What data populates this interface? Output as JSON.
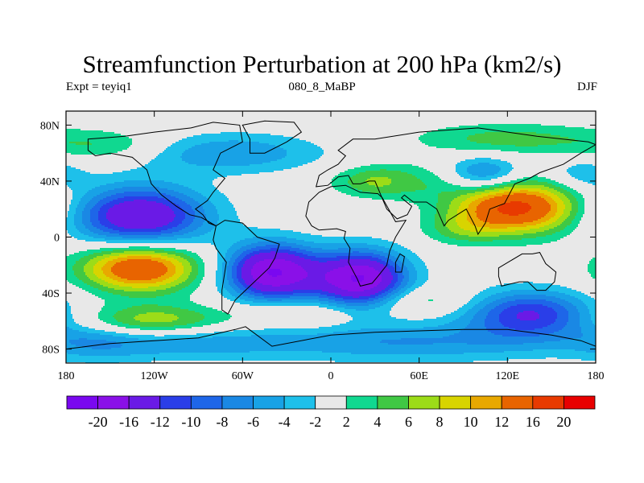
{
  "chart_data": {
    "type": "heatmap",
    "title": "Streamfunction Perturbation at 200 hPa (km2/s)",
    "left_string": "Expt = teyiq1",
    "center_string": "080_8_MaBP",
    "right_string": "DJF",
    "xlim": [
      -180,
      180
    ],
    "ylim": [
      -90,
      90
    ],
    "x_ticks": [
      {
        "value": -180,
        "label": "180"
      },
      {
        "value": -120,
        "label": "120W"
      },
      {
        "value": -60,
        "label": "60W"
      },
      {
        "value": 0,
        "label": "0"
      },
      {
        "value": 60,
        "label": "60E"
      },
      {
        "value": 120,
        "label": "120E"
      },
      {
        "value": 180,
        "label": "180"
      }
    ],
    "y_ticks": [
      {
        "value": 80,
        "label": "80N"
      },
      {
        "value": 40,
        "label": "40N"
      },
      {
        "value": 0,
        "label": "0"
      },
      {
        "value": -40,
        "label": "40S"
      },
      {
        "value": -80,
        "label": "80S"
      }
    ],
    "levels": [
      -20,
      -16,
      -12,
      -10,
      -8,
      -6,
      -4,
      -2,
      2,
      4,
      6,
      8,
      10,
      12,
      16,
      20
    ],
    "level_labels": [
      "-20",
      "-16",
      "-12",
      "-10",
      "-8",
      "-6",
      "-4",
      "-2",
      "2",
      "4",
      "6",
      "8",
      "10",
      "12",
      "16",
      "20"
    ],
    "colors": [
      "#7a08f0",
      "#8a10e8",
      "#6a1ae6",
      "#2a3ee8",
      "#1e66e8",
      "#1a88e4",
      "#18a2e6",
      "#1ec0ea",
      "#e8e8e8",
      "#10d890",
      "#40c844",
      "#9cdc18",
      "#d8d400",
      "#e8a800",
      "#e86400",
      "#e83a00",
      "#e80000"
    ],
    "anomalies": [
      {
        "lon": -130,
        "lat": 15,
        "amp": -16,
        "sx": 32,
        "sy": 15
      },
      {
        "lon": -40,
        "lat": -25,
        "amp": -20,
        "sx": 22,
        "sy": 14
      },
      {
        "lon": 20,
        "lat": -30,
        "amp": -20,
        "sx": 22,
        "sy": 14
      },
      {
        "lon": 135,
        "lat": -55,
        "amp": -12,
        "sx": 30,
        "sy": 12
      },
      {
        "lon": 105,
        "lat": 45,
        "amp": -8,
        "sx": 18,
        "sy": 9
      },
      {
        "lon": 170,
        "lat": 45,
        "amp": -4,
        "sx": 16,
        "sy": 8
      },
      {
        "lon": 50,
        "lat": 40,
        "amp": -2.5,
        "sx": 14,
        "sy": 6
      },
      {
        "lon": -70,
        "lat": 60,
        "amp": -6,
        "sx": 45,
        "sy": 10
      },
      {
        "lon": 50,
        "lat": -75,
        "amp": -6,
        "sx": 75,
        "sy": 10
      },
      {
        "lon": -100,
        "lat": -75,
        "amp": -5,
        "sx": 45,
        "sy": 9
      },
      {
        "lon": 110,
        "lat": 5,
        "amp": -3,
        "sx": 30,
        "sy": 10
      },
      {
        "lon": -160,
        "lat": -75,
        "amp": -4,
        "sx": 25,
        "sy": 10
      },
      {
        "lon": 125,
        "lat": 20,
        "amp": 18,
        "sx": 30,
        "sy": 14
      },
      {
        "lon": -130,
        "lat": -22,
        "amp": 16,
        "sx": 28,
        "sy": 12
      },
      {
        "lon": 90,
        "lat": 5,
        "amp": 5,
        "sx": 20,
        "sy": 8
      },
      {
        "lon": 40,
        "lat": 40,
        "amp": 8,
        "sx": 25,
        "sy": 8
      },
      {
        "lon": -120,
        "lat": -60,
        "amp": 8,
        "sx": 35,
        "sy": 8
      },
      {
        "lon": 60,
        "lat": -45,
        "amp": 4,
        "sx": 25,
        "sy": 7
      },
      {
        "lon": 120,
        "lat": 70,
        "amp": 5,
        "sx": 45,
        "sy": 8
      },
      {
        "lon": -150,
        "lat": 65,
        "amp": 4,
        "sx": 30,
        "sy": 8
      },
      {
        "lon": -20,
        "lat": -55,
        "amp": 4,
        "sx": 30,
        "sy": 7
      }
    ],
    "continents": [
      {
        "name": "North America",
        "points": [
          [
            -165,
            70
          ],
          [
            -140,
            72
          ],
          [
            -120,
            75
          ],
          [
            -95,
            78
          ],
          [
            -80,
            82
          ],
          [
            -62,
            80
          ],
          [
            -60,
            68
          ],
          [
            -75,
            60
          ],
          [
            -80,
            48
          ],
          [
            -72,
            42
          ],
          [
            -80,
            32
          ],
          [
            -84,
            26
          ],
          [
            -92,
            20
          ],
          [
            -87,
            16
          ],
          [
            -83,
            10
          ],
          [
            -78,
            8
          ],
          [
            -88,
            14
          ],
          [
            -96,
            16
          ],
          [
            -105,
            22
          ],
          [
            -115,
            30
          ],
          [
            -122,
            38
          ],
          [
            -125,
            48
          ],
          [
            -135,
            57
          ],
          [
            -150,
            60
          ],
          [
            -160,
            58
          ],
          [
            -165,
            62
          ]
        ]
      },
      {
        "name": "Greenland",
        "points": [
          [
            -55,
            60
          ],
          [
            -45,
            60
          ],
          [
            -30,
            68
          ],
          [
            -20,
            75
          ],
          [
            -25,
            82
          ],
          [
            -45,
            83
          ],
          [
            -60,
            80
          ],
          [
            -55,
            70
          ]
        ]
      },
      {
        "name": "South America",
        "points": [
          [
            -78,
            8
          ],
          [
            -72,
            12
          ],
          [
            -60,
            10
          ],
          [
            -50,
            0
          ],
          [
            -35,
            -5
          ],
          [
            -38,
            -15
          ],
          [
            -42,
            -22
          ],
          [
            -48,
            -28
          ],
          [
            -58,
            -38
          ],
          [
            -65,
            -45
          ],
          [
            -70,
            -55
          ],
          [
            -74,
            -52
          ],
          [
            -74,
            -38
          ],
          [
            -71,
            -18
          ],
          [
            -78,
            -8
          ],
          [
            -80,
            -2
          ]
        ]
      },
      {
        "name": "Eurasia",
        "points": [
          [
            -10,
            36
          ],
          [
            -8,
            44
          ],
          [
            -2,
            48
          ],
          [
            5,
            52
          ],
          [
            10,
            58
          ],
          [
            5,
            62
          ],
          [
            15,
            70
          ],
          [
            30,
            70
          ],
          [
            60,
            75
          ],
          [
            100,
            78
          ],
          [
            140,
            72
          ],
          [
            175,
            68
          ],
          [
            180,
            66
          ],
          [
            170,
            60
          ],
          [
            158,
            52
          ],
          [
            142,
            46
          ],
          [
            135,
            42
          ],
          [
            125,
            38
          ],
          [
            121,
            30
          ],
          [
            118,
            24
          ],
          [
            108,
            20
          ],
          [
            105,
            10
          ],
          [
            100,
            2
          ],
          [
            98,
            8
          ],
          [
            92,
            20
          ],
          [
            80,
            12
          ],
          [
            77,
            8
          ],
          [
            72,
            20
          ],
          [
            65,
            25
          ],
          [
            56,
            25
          ],
          [
            50,
            30
          ],
          [
            48,
            28
          ],
          [
            55,
            22
          ],
          [
            52,
            16
          ],
          [
            45,
            13
          ],
          [
            38,
            20
          ],
          [
            34,
            30
          ],
          [
            30,
            40
          ],
          [
            26,
            40
          ],
          [
            20,
            38
          ],
          [
            15,
            38
          ],
          [
            12,
            44
          ],
          [
            5,
            43
          ],
          [
            -2,
            37
          ]
        ]
      },
      {
        "name": "Africa",
        "points": [
          [
            -17,
            15
          ],
          [
            -15,
            25
          ],
          [
            -8,
            32
          ],
          [
            0,
            36
          ],
          [
            10,
            37
          ],
          [
            20,
            32
          ],
          [
            32,
            31
          ],
          [
            35,
            28
          ],
          [
            44,
            11
          ],
          [
            51,
            12
          ],
          [
            44,
            0
          ],
          [
            40,
            -10
          ],
          [
            38,
            -20
          ],
          [
            32,
            -28
          ],
          [
            28,
            -33
          ],
          [
            20,
            -35
          ],
          [
            18,
            -30
          ],
          [
            12,
            -18
          ],
          [
            13,
            -8
          ],
          [
            9,
            -1
          ],
          [
            10,
            4
          ],
          [
            4,
            6
          ],
          [
            -8,
            5
          ],
          [
            -13,
            8
          ]
        ]
      },
      {
        "name": "Madagascar",
        "points": [
          [
            44,
            -25
          ],
          [
            48,
            -25
          ],
          [
            50,
            -14
          ],
          [
            47,
            -12
          ],
          [
            44,
            -18
          ]
        ]
      },
      {
        "name": "Australia",
        "points": [
          [
            114,
            -22
          ],
          [
            122,
            -17
          ],
          [
            130,
            -12
          ],
          [
            137,
            -12
          ],
          [
            142,
            -11
          ],
          [
            146,
            -19
          ],
          [
            153,
            -25
          ],
          [
            152,
            -32
          ],
          [
            146,
            -38
          ],
          [
            140,
            -38
          ],
          [
            134,
            -32
          ],
          [
            128,
            -32
          ],
          [
            116,
            -35
          ],
          [
            114,
            -28
          ]
        ]
      },
      {
        "name": "Antarctica",
        "points": [
          [
            -180,
            -80
          ],
          [
            -150,
            -76
          ],
          [
            -120,
            -74
          ],
          [
            -90,
            -72
          ],
          [
            -65,
            -66
          ],
          [
            -58,
            -64
          ],
          [
            -40,
            -78
          ],
          [
            0,
            -70
          ],
          [
            30,
            -68
          ],
          [
            60,
            -67
          ],
          [
            90,
            -66
          ],
          [
            120,
            -66
          ],
          [
            150,
            -70
          ],
          [
            170,
            -74
          ],
          [
            180,
            -78
          ],
          [
            180,
            -90
          ],
          [
            -180,
            -90
          ]
        ]
      }
    ]
  }
}
